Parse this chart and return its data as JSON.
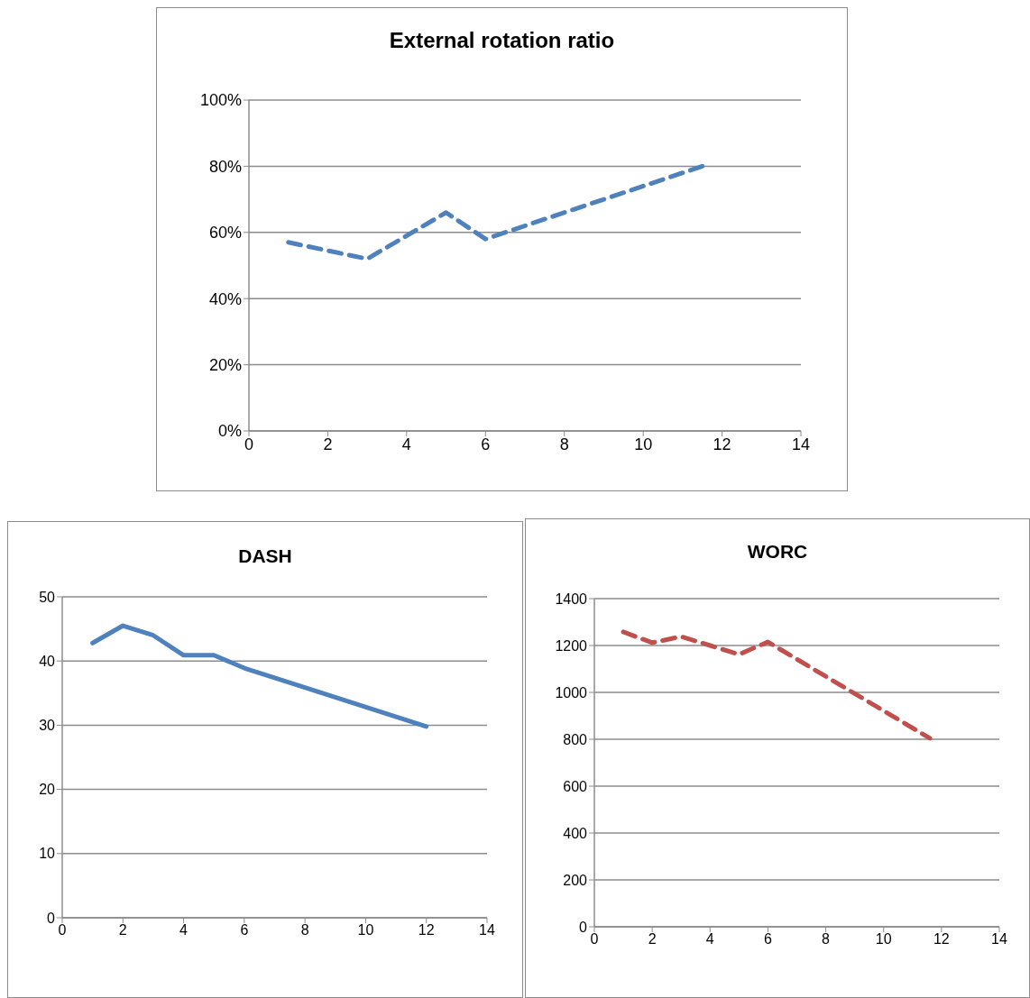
{
  "chart_data": [
    {
      "type": "line",
      "title": "External rotation ratio",
      "xlim": [
        0,
        14
      ],
      "xticks": [
        0,
        2,
        4,
        6,
        8,
        10,
        12,
        14
      ],
      "ylim": [
        0,
        100
      ],
      "yticks": [
        {
          "value": 0,
          "label": "0%"
        },
        {
          "value": 20,
          "label": "20%"
        },
        {
          "value": 40,
          "label": "40%"
        },
        {
          "value": 60,
          "label": "60%"
        },
        {
          "value": 80,
          "label": "80%"
        },
        {
          "value": 100,
          "label": "100%"
        }
      ],
      "grid": "y",
      "line_style": "dashed",
      "series": [
        {
          "color": "#4f81bd",
          "x": [
            1,
            3,
            5,
            6,
            11.5
          ],
          "values": [
            57,
            52,
            66,
            58,
            80
          ]
        }
      ]
    },
    {
      "type": "line",
      "title": "DASH",
      "xlim": [
        0,
        14
      ],
      "xticks": [
        0,
        2,
        4,
        6,
        8,
        10,
        12,
        14
      ],
      "ylim": [
        0,
        50
      ],
      "yticks": [
        0,
        10,
        20,
        30,
        40,
        50
      ],
      "grid": "y",
      "line_style": "solid",
      "series": [
        {
          "color": "#4f81bd",
          "x": [
            1,
            2,
            3,
            4,
            5,
            6,
            12
          ],
          "values": [
            42.8,
            45.5,
            44,
            40.9,
            40.9,
            38.9,
            29.8
          ]
        }
      ]
    },
    {
      "type": "line",
      "title": "WORC",
      "xlim": [
        0,
        14
      ],
      "xticks": [
        0,
        2,
        4,
        6,
        8,
        10,
        12,
        14
      ],
      "ylim": [
        0,
        1400
      ],
      "yticks": [
        0,
        200,
        400,
        600,
        800,
        1000,
        1200,
        1400
      ],
      "grid": "y",
      "line_style": "dashed",
      "series": [
        {
          "color": "#c0504d",
          "x": [
            1,
            2,
            3,
            4,
            5,
            6,
            11.6
          ],
          "values": [
            1258,
            1212,
            1238,
            1200,
            1162,
            1215,
            804
          ]
        }
      ]
    }
  ]
}
